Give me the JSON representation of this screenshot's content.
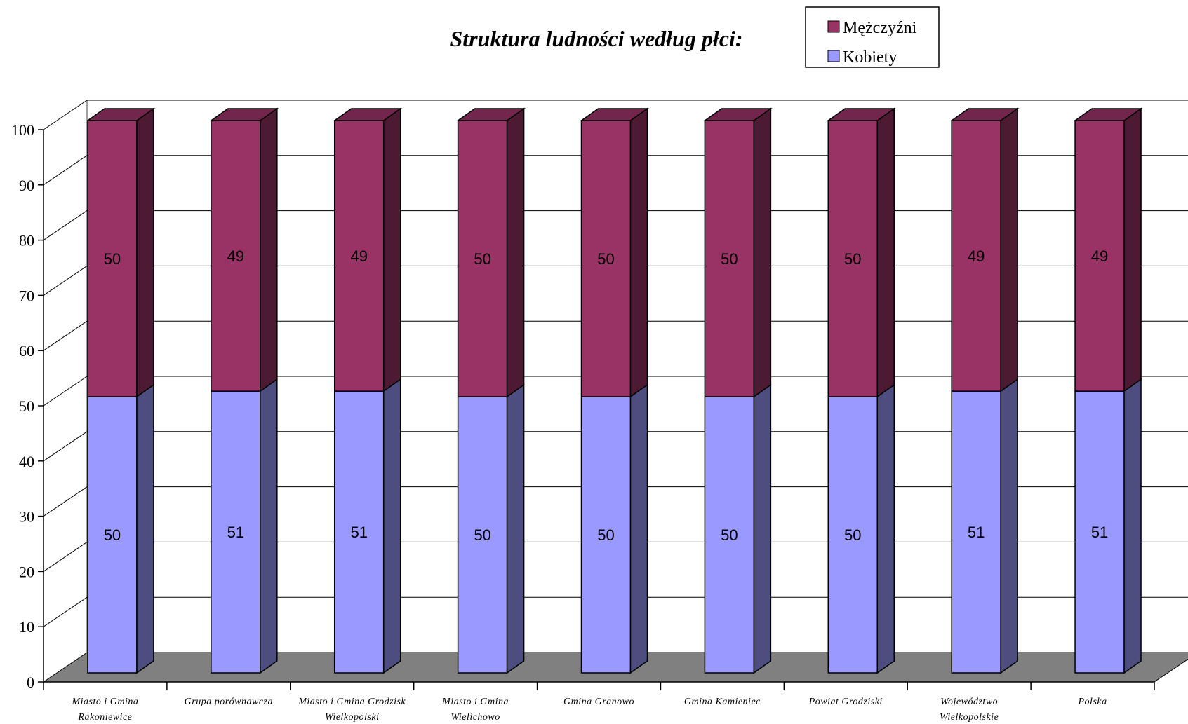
{
  "chart_data": {
    "type": "bar",
    "stacked": true,
    "title": "Struktura ludności według płci:",
    "categories": [
      [
        "Miasto i Gmina",
        "Rakoniewice"
      ],
      [
        "Grupa porównawcza"
      ],
      [
        "Miasto i Gmina Grodzisk",
        "Wielkopolski"
      ],
      [
        "Miasto i Gmina",
        "Wielichowo"
      ],
      [
        "Gmina Granowo"
      ],
      [
        "Gmina Kamieniec"
      ],
      [
        "Powiat Grodziski"
      ],
      [
        "Województwo",
        "Wielkopolskie"
      ],
      [
        "Polska"
      ]
    ],
    "series": [
      {
        "name": "Kobiety",
        "values": [
          50,
          51,
          51,
          50,
          50,
          50,
          50,
          51,
          51
        ],
        "color": "#9999ff"
      },
      {
        "name": "Mężczyźni",
        "values": [
          50,
          49,
          49,
          50,
          50,
          50,
          50,
          49,
          49
        ],
        "color": "#993366"
      }
    ],
    "yticks": [
      0,
      10,
      20,
      30,
      40,
      50,
      60,
      70,
      80,
      90,
      100
    ],
    "ylim": [
      0,
      100
    ],
    "grid": true,
    "legend": {
      "placement": "top-right",
      "order": [
        "Mężczyźni",
        "Kobiety"
      ]
    }
  }
}
